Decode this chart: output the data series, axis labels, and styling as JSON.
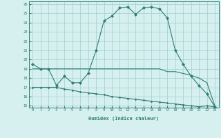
{
  "xlabel": "Humidex (Indice chaleur)",
  "x": [
    0,
    1,
    2,
    3,
    4,
    5,
    6,
    7,
    8,
    9,
    10,
    11,
    12,
    13,
    14,
    15,
    16,
    17,
    18,
    19,
    20,
    21,
    22,
    23
  ],
  "line1": [
    19.5,
    19.0,
    19.0,
    17.2,
    18.2,
    17.5,
    17.5,
    18.5,
    21.0,
    24.2,
    24.7,
    25.6,
    25.7,
    24.9,
    25.6,
    25.7,
    25.5,
    24.5,
    21.0,
    19.5,
    18.2,
    17.2,
    16.3,
    14.9
  ],
  "line2": [
    19.0,
    19.0,
    19.0,
    19.0,
    19.0,
    19.0,
    19.0,
    19.0,
    19.0,
    19.0,
    19.0,
    19.0,
    19.0,
    19.0,
    19.0,
    19.0,
    19.0,
    18.7,
    18.7,
    18.5,
    18.3,
    18.0,
    17.5,
    15.0
  ],
  "line3": [
    17.0,
    17.0,
    17.0,
    17.0,
    16.8,
    16.7,
    16.5,
    16.4,
    16.3,
    16.2,
    16.0,
    15.9,
    15.8,
    15.7,
    15.6,
    15.5,
    15.4,
    15.3,
    15.2,
    15.1,
    15.0,
    14.9,
    15.0,
    14.9
  ],
  "line_color": "#2e7d72",
  "bg_color": "#d6efef",
  "grid_color": "#a0cece",
  "ylim": [
    14.8,
    26.3
  ],
  "xlim": [
    -0.5,
    23.5
  ],
  "yticks": [
    15,
    16,
    17,
    18,
    19,
    20,
    21,
    22,
    23,
    24,
    25,
    26
  ],
  "xticks": [
    0,
    1,
    2,
    3,
    4,
    5,
    6,
    7,
    8,
    9,
    10,
    11,
    12,
    13,
    14,
    15,
    16,
    17,
    18,
    19,
    20,
    21,
    22,
    23
  ]
}
